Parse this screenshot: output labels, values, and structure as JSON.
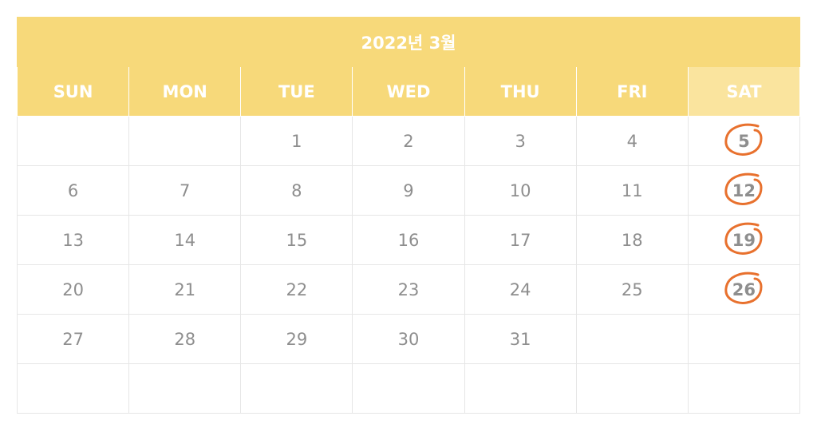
{
  "calendar": {
    "title": "2022년 3월",
    "weekdays": [
      "SUN",
      "MON",
      "TUE",
      "WED",
      "THU",
      "FRI",
      "SAT"
    ],
    "weeks": [
      [
        "",
        "",
        "1",
        "2",
        "3",
        "4",
        "5"
      ],
      [
        "6",
        "7",
        "8",
        "9",
        "10",
        "11",
        "12"
      ],
      [
        "13",
        "14",
        "15",
        "16",
        "17",
        "18",
        "19"
      ],
      [
        "20",
        "21",
        "22",
        "23",
        "24",
        "25",
        "26"
      ],
      [
        "27",
        "28",
        "29",
        "30",
        "31",
        "",
        ""
      ],
      [
        "",
        "",
        "",
        "",
        "",
        "",
        ""
      ]
    ],
    "circled_days": [
      "5",
      "12",
      "19",
      "26"
    ]
  },
  "colors": {
    "header_bg": "#f7d97a",
    "saturday_header_bg": "#fae49e",
    "circle_mark": "#e8712e",
    "day_text": "#8e8e8e"
  }
}
